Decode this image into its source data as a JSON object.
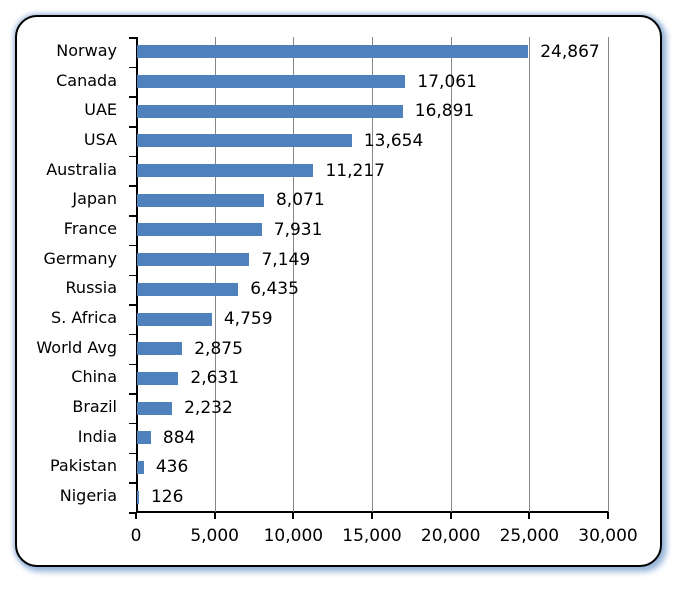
{
  "chart_data": {
    "type": "bar",
    "orientation": "horizontal",
    "title": "",
    "xlabel": "",
    "ylabel": "",
    "xlim": [
      0,
      30000
    ],
    "grid": true,
    "legend": null,
    "bar_color": "#4F81BD",
    "categories": [
      "Norway",
      "Canada",
      "UAE",
      "USA",
      "Australia",
      "Japan",
      "France",
      "Germany",
      "Russia",
      "S. Africa",
      "World Avg",
      "China",
      "Brazil",
      "India",
      "Pakistan",
      "Nigeria"
    ],
    "values": [
      24867,
      17061,
      16891,
      13654,
      11217,
      8071,
      7931,
      7149,
      6435,
      4759,
      2875,
      2631,
      2232,
      884,
      436,
      126
    ],
    "value_labels": [
      "24,867",
      "17,061",
      "16,891",
      "13,654",
      "11,217",
      "8,071",
      "7,931",
      "7,149",
      "6,435",
      "4,759",
      "2,875",
      "2,631",
      "2,232",
      "884",
      "436",
      "126"
    ],
    "x_ticks": [
      0,
      5000,
      10000,
      15000,
      20000,
      25000,
      30000
    ],
    "x_tick_labels": [
      "0",
      "5,000",
      "10,000",
      "15,000",
      "20,000",
      "25,000",
      "30,000"
    ]
  }
}
